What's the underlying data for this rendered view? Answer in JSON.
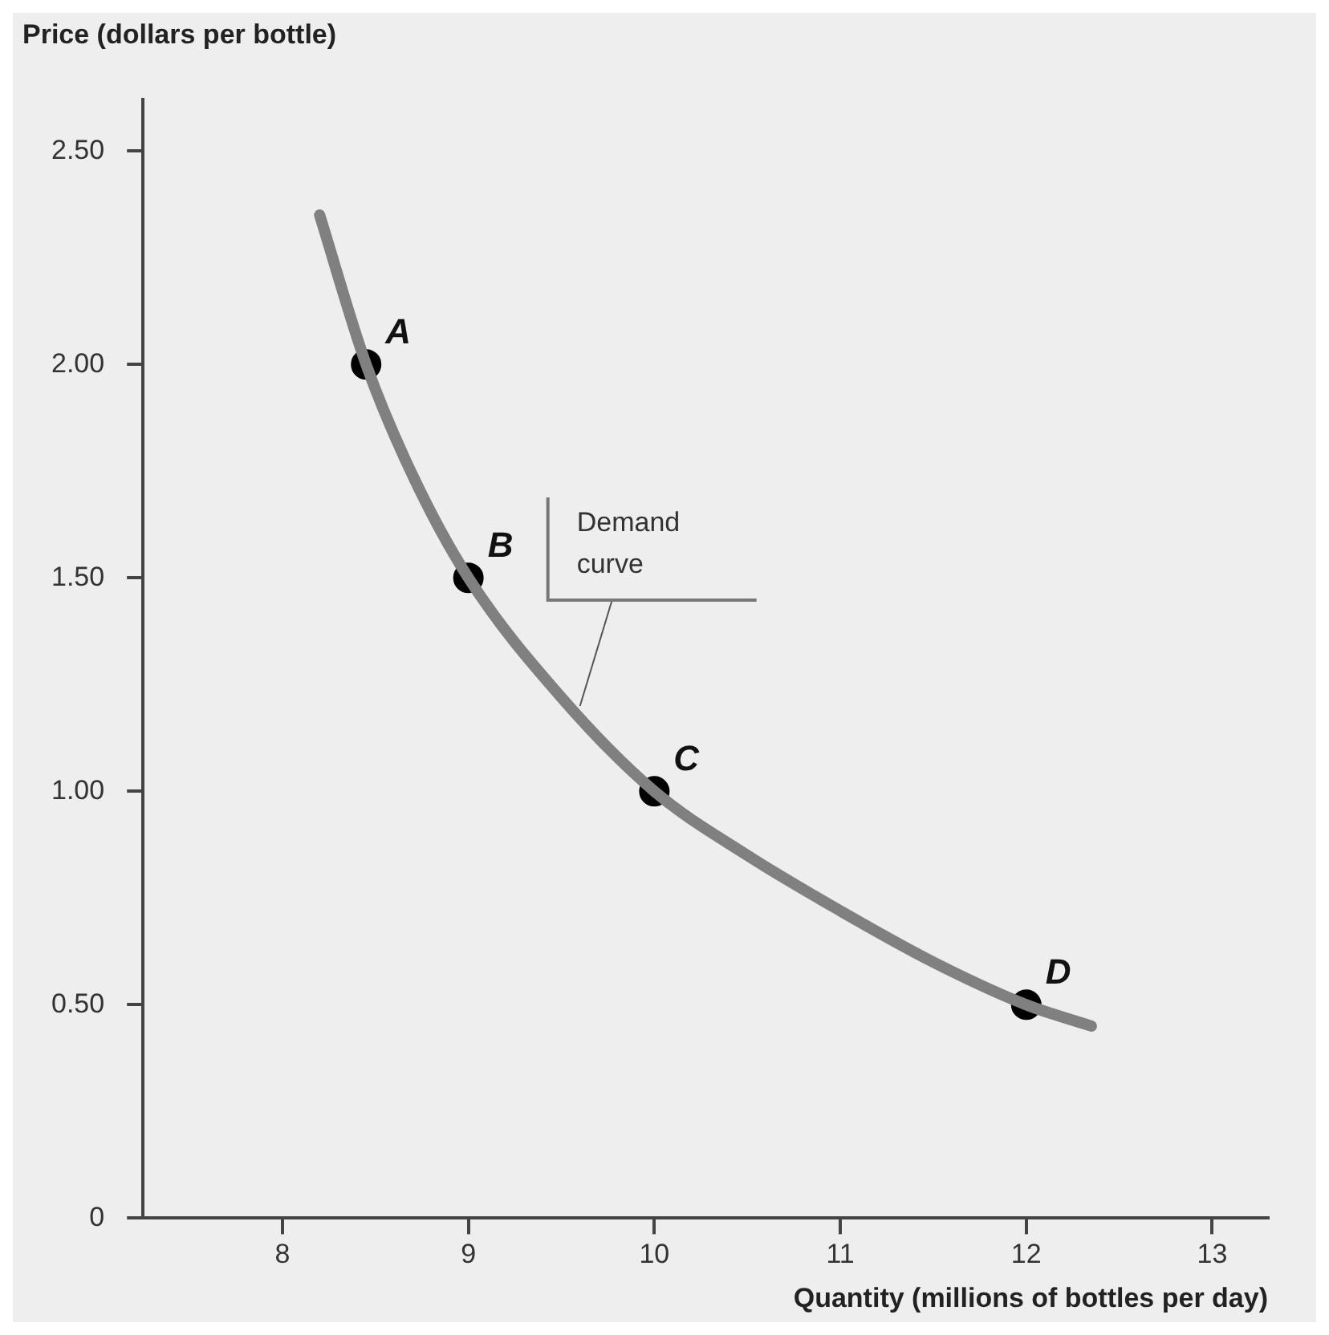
{
  "chart_data": {
    "type": "line",
    "xlabel": "Quantity (millions of bottles per day)",
    "ylabel": "Price (dollars per bottle)",
    "xlim": [
      7.25,
      13.3
    ],
    "xticks": [
      8,
      9,
      10,
      11,
      12,
      13
    ],
    "ylim": [
      0,
      2.62
    ],
    "yticks": [
      {
        "value": 0,
        "label": "0"
      },
      {
        "value": 0.5,
        "label": "0.50"
      },
      {
        "value": 1,
        "label": "1.00"
      },
      {
        "value": 1.5,
        "label": "1.50"
      },
      {
        "value": 2,
        "label": "2.00"
      },
      {
        "value": 2.5,
        "label": "2.50"
      }
    ],
    "grid": false,
    "legend": false,
    "series": [
      {
        "type": "line",
        "marker": "none",
        "color": "#808080",
        "x": [
          8.2,
          8.45,
          8.7,
          9,
          9.5,
          10,
          10.5,
          11,
          11.5,
          12,
          12.35
        ],
        "values": [
          2.35,
          2.0,
          1.74,
          1.5,
          1.22,
          1.0,
          0.85,
          0.72,
          0.6,
          0.5,
          0.45
        ]
      },
      {
        "type": "scatter",
        "marker": "circle",
        "color": "#000000",
        "x": [
          8.45,
          9,
          10,
          12
        ],
        "values": [
          2,
          1.5,
          1,
          0.5
        ]
      }
    ],
    "annotations": [
      {
        "text": "A",
        "x": 8.45,
        "y": 2
      },
      {
        "text": "B",
        "x": 9,
        "y": 1.5
      },
      {
        "text": "C",
        "x": 10,
        "y": 1
      },
      {
        "text": "D",
        "x": 12,
        "y": 0.5
      },
      {
        "text": "Demand curve",
        "x": 9.6,
        "y": 1.2
      }
    ]
  }
}
